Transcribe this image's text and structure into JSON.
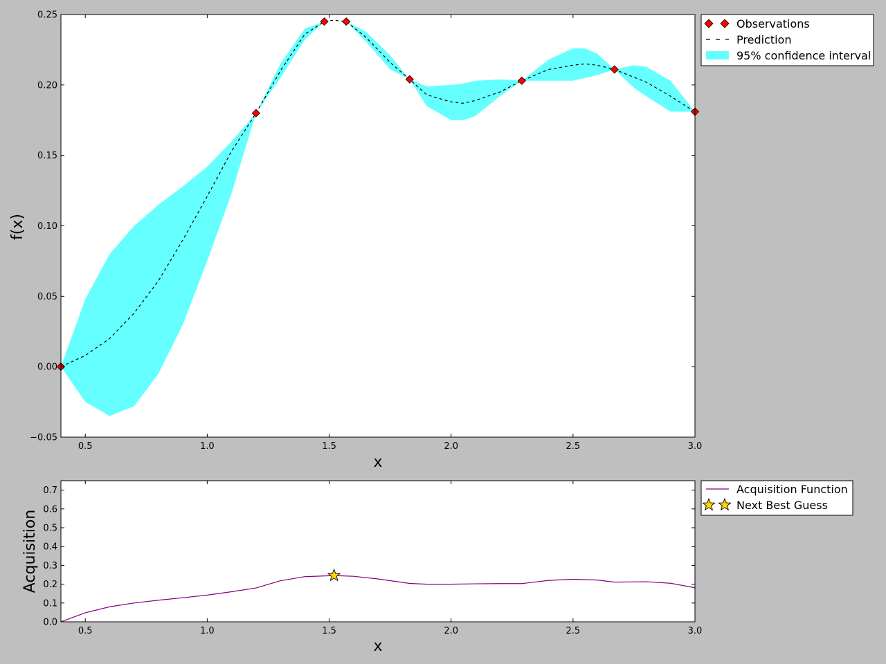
{
  "chart_data": [
    {
      "type": "line",
      "title": "",
      "xlabel": "x",
      "ylabel": "f(x)",
      "xlim": [
        0.4,
        3.0
      ],
      "ylim": [
        -0.05,
        0.25
      ],
      "xticks": [
        0.5,
        1.0,
        1.5,
        2.0,
        2.5,
        3.0
      ],
      "xtick_labels": [
        "0.5",
        "1.0",
        "1.5",
        "2.0",
        "2.5",
        "3.0"
      ],
      "yticks": [
        -0.05,
        0.0,
        0.05,
        0.1,
        0.15,
        0.2,
        0.25
      ],
      "ytick_labels": [
        "−0.05",
        "0.00",
        "0.05",
        "0.10",
        "0.15",
        "0.20",
        "0.25"
      ],
      "grid": false,
      "legend_position": "outside-top-right",
      "series": [
        {
          "name": "Observations",
          "kind": "scatter",
          "marker": "diamond",
          "color": "#ff0000",
          "x": [
            0.4,
            1.2,
            1.48,
            1.57,
            1.83,
            2.29,
            2.67,
            3.0
          ],
          "y": [
            0.0,
            0.18,
            0.245,
            0.245,
            0.204,
            0.203,
            0.211,
            0.181
          ]
        },
        {
          "name": "Prediction",
          "kind": "line",
          "style": "dashed",
          "color": "#000000",
          "x": [
            0.4,
            0.5,
            0.6,
            0.7,
            0.8,
            0.9,
            1.0,
            1.1,
            1.2,
            1.3,
            1.4,
            1.48,
            1.52,
            1.57,
            1.65,
            1.75,
            1.83,
            1.9,
            2.0,
            2.05,
            2.1,
            2.2,
            2.29,
            2.4,
            2.5,
            2.55,
            2.6,
            2.67,
            2.8,
            2.9,
            3.0
          ],
          "y": [
            0.0,
            0.008,
            0.02,
            0.038,
            0.061,
            0.09,
            0.121,
            0.153,
            0.18,
            0.21,
            0.236,
            0.245,
            0.246,
            0.245,
            0.234,
            0.216,
            0.204,
            0.193,
            0.188,
            0.187,
            0.189,
            0.195,
            0.203,
            0.211,
            0.214,
            0.215,
            0.214,
            0.211,
            0.202,
            0.192,
            0.181
          ]
        },
        {
          "name": "95% confidence interval",
          "kind": "band",
          "color": "#00ffff",
          "x": [
            0.4,
            0.5,
            0.6,
            0.7,
            0.8,
            0.9,
            1.0,
            1.1,
            1.2,
            1.3,
            1.4,
            1.48,
            1.52,
            1.57,
            1.65,
            1.75,
            1.83,
            1.9,
            2.0,
            2.05,
            2.1,
            2.2,
            2.29,
            2.4,
            2.5,
            2.55,
            2.6,
            2.67,
            2.75,
            2.8,
            2.9,
            3.0
          ],
          "lower": [
            0.0,
            -0.025,
            -0.035,
            -0.028,
            -0.005,
            0.03,
            0.075,
            0.123,
            0.18,
            0.205,
            0.232,
            0.245,
            0.246,
            0.245,
            0.231,
            0.211,
            0.204,
            0.185,
            0.175,
            0.175,
            0.178,
            0.192,
            0.203,
            0.203,
            0.203,
            0.205,
            0.207,
            0.211,
            0.198,
            0.192,
            0.181,
            0.181
          ],
          "upper": [
            0.0,
            0.048,
            0.08,
            0.1,
            0.115,
            0.128,
            0.142,
            0.16,
            0.18,
            0.215,
            0.24,
            0.245,
            0.246,
            0.245,
            0.238,
            0.221,
            0.204,
            0.199,
            0.2,
            0.201,
            0.203,
            0.204,
            0.203,
            0.218,
            0.226,
            0.226,
            0.222,
            0.211,
            0.214,
            0.213,
            0.203,
            0.181
          ]
        }
      ]
    },
    {
      "type": "line",
      "title": "",
      "xlabel": "x",
      "ylabel": "Acquisition",
      "xlim": [
        0.4,
        3.0
      ],
      "ylim": [
        0.0,
        0.75
      ],
      "xticks": [
        0.5,
        1.0,
        1.5,
        2.0,
        2.5,
        3.0
      ],
      "xtick_labels": [
        "0.5",
        "1.0",
        "1.5",
        "2.0",
        "2.5",
        "3.0"
      ],
      "yticks": [
        0.0,
        0.1,
        0.2,
        0.3,
        0.4,
        0.5,
        0.6,
        0.7
      ],
      "ytick_labels": [
        "0.0",
        "0.1",
        "0.2",
        "0.3",
        "0.4",
        "0.5",
        "0.6",
        "0.7"
      ],
      "grid": false,
      "legend_position": "outside-top-right",
      "series": [
        {
          "name": "Acquisition Function",
          "kind": "line",
          "color": "#800080",
          "x": [
            0.4,
            0.5,
            0.6,
            0.7,
            0.8,
            0.9,
            1.0,
            1.1,
            1.2,
            1.3,
            1.4,
            1.52,
            1.6,
            1.7,
            1.83,
            1.9,
            2.0,
            2.1,
            2.2,
            2.29,
            2.4,
            2.5,
            2.6,
            2.67,
            2.8,
            2.9,
            3.0
          ],
          "y": [
            0.0,
            0.048,
            0.08,
            0.1,
            0.115,
            0.128,
            0.142,
            0.16,
            0.18,
            0.218,
            0.24,
            0.246,
            0.242,
            0.228,
            0.204,
            0.2,
            0.2,
            0.202,
            0.203,
            0.203,
            0.22,
            0.226,
            0.222,
            0.211,
            0.213,
            0.205,
            0.181
          ]
        },
        {
          "name": "Next Best Guess",
          "kind": "scatter",
          "marker": "star",
          "color": "#ffd700",
          "x": [
            1.52
          ],
          "y": [
            0.246
          ]
        }
      ]
    }
  ]
}
